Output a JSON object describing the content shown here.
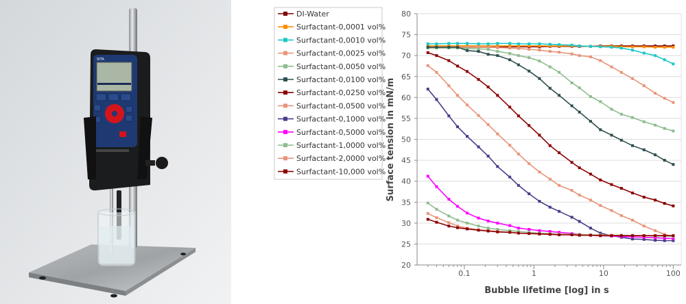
{
  "photo": {
    "device_logo": "SITA"
  },
  "chart_data": {
    "type": "line",
    "xlabel": "Bubble lifetime [log] in s",
    "ylabel": "Surface tension in mN/m",
    "xscale": "log",
    "xlim": [
      0.021,
      130
    ],
    "ylim": [
      20,
      80
    ],
    "yticks": [
      20,
      25,
      30,
      35,
      40,
      45,
      50,
      55,
      60,
      65,
      70,
      75,
      80
    ],
    "xticks": [
      0.1,
      1,
      10,
      100
    ],
    "xtick_labels": [
      "0.1",
      "1",
      "10",
      "100"
    ],
    "grid": "horizontal",
    "legend_placement": "left",
    "x": [
      0.03,
      0.04,
      0.06,
      0.08,
      0.11,
      0.16,
      0.22,
      0.3,
      0.45,
      0.6,
      0.85,
      1.2,
      1.7,
      2.3,
      3.5,
      4.5,
      6.5,
      9,
      13,
      18,
      26,
      38,
      55,
      75,
      100
    ],
    "series": [
      {
        "name": "DI-Water",
        "color": "#7f0000",
        "values": [
          72,
          72,
          72,
          72,
          72,
          72,
          72,
          72,
          72.1,
          72.1,
          72.1,
          72.1,
          72.2,
          72.2,
          72.2,
          72.2,
          72.2,
          72.3,
          72.3,
          72.3,
          72.3,
          72.3,
          72.3,
          72.3,
          72.3
        ]
      },
      {
        "name": "Surfactant-0,0001 vol%",
        "color": "#ff8c00",
        "values": [
          72.3,
          72.3,
          72.3,
          72.3,
          72.3,
          72.3,
          72.3,
          72.3,
          72.3,
          72.3,
          72.3,
          72.3,
          72.3,
          72.3,
          72.3,
          72.3,
          72.2,
          72.2,
          72.2,
          72.1,
          72.1,
          72.1,
          72,
          72,
          72
        ]
      },
      {
        "name": "Surfactant-0,0010 vol%",
        "color": "#1cc8c8",
        "values": [
          72.8,
          72.8,
          72.9,
          72.9,
          72.9,
          72.8,
          72.8,
          72.9,
          72.9,
          72.8,
          72.8,
          72.8,
          72.7,
          72.6,
          72.5,
          72.3,
          72.2,
          72.1,
          72,
          71.8,
          71.3,
          70.6,
          70,
          69,
          68
        ]
      },
      {
        "name": "Surfactant-0,0025 vol%",
        "color": "#e8957a",
        "values": [
          72,
          72,
          72,
          72,
          72,
          72,
          72,
          71.9,
          71.8,
          71.7,
          71.5,
          71.3,
          71,
          70.8,
          70.4,
          70,
          69.7,
          68.8,
          67.3,
          66,
          64.5,
          62.8,
          61,
          59.8,
          58.8
        ]
      },
      {
        "name": "Surfactant-0,0050 vol%",
        "color": "#8fbc8f",
        "values": [
          71.8,
          71.8,
          71.8,
          71.8,
          71.7,
          71.6,
          71.5,
          71,
          70.5,
          70,
          69.5,
          68.7,
          67.3,
          66,
          63.5,
          62.3,
          60.2,
          59,
          57.2,
          56,
          55.2,
          54.2,
          53.4,
          52.6,
          52
        ]
      },
      {
        "name": "Surfactant-0,0100 vol%",
        "color": "#2f4f4f",
        "values": [
          72,
          72,
          72,
          72,
          71.2,
          71,
          70.3,
          70,
          69,
          67.8,
          66.3,
          64.5,
          62.2,
          60.5,
          58,
          56.5,
          54.3,
          52.3,
          51,
          49.8,
          48.5,
          47.5,
          46.3,
          45,
          44
        ]
      },
      {
        "name": "Surfactant-0,0250 vol%",
        "color": "#8b0000",
        "values": [
          70.7,
          70,
          68.8,
          67.5,
          66.2,
          64.3,
          62.5,
          60.5,
          57.7,
          55.6,
          53.3,
          51,
          48.5,
          46.8,
          44.5,
          43.2,
          41.7,
          40.3,
          39.2,
          38.3,
          37.2,
          36.2,
          35.5,
          34.7,
          34.1
        ]
      },
      {
        "name": "Surfactant-0,0500 vol%",
        "color": "#e8957a",
        "values": [
          67.6,
          66,
          62.8,
          60.5,
          58.2,
          55.7,
          53.5,
          51.3,
          48.6,
          46.5,
          44.2,
          42.2,
          40.5,
          39,
          37.8,
          36.7,
          35.5,
          34.2,
          33,
          31.8,
          30.7,
          29.3,
          28.2,
          27.3,
          26.8
        ]
      },
      {
        "name": "Surfactant-0,1000 vol%",
        "color": "#483d8b",
        "values": [
          62,
          59.5,
          55.6,
          53,
          50.7,
          48.2,
          46,
          43.5,
          41,
          39,
          37,
          35.2,
          33.8,
          32.8,
          31.4,
          30.4,
          28.8,
          27.6,
          27,
          26.6,
          26.2,
          26.1,
          25.9,
          25.8,
          25.8
        ]
      },
      {
        "name": "Surfactant-0,5000 vol%",
        "color": "#ff00ff",
        "values": [
          41.2,
          38.7,
          35.7,
          34,
          32.4,
          31.2,
          30.5,
          30,
          29.4,
          28.8,
          28.5,
          28.2,
          28,
          27.8,
          27.5,
          27.3,
          27.1,
          27,
          26.9,
          26.8,
          26.7,
          26.6,
          26.5,
          26.4,
          26.3
        ]
      },
      {
        "name": "Surfactant-1,0000 vol%",
        "color": "#8fbc8f",
        "values": [
          34.8,
          33.3,
          31.7,
          30.7,
          30,
          29.3,
          28.8,
          28.5,
          28.2,
          28,
          27.8,
          27.6,
          27.5,
          27.4,
          27.3,
          27.3,
          27.2,
          27.2,
          27.1,
          27.1,
          27,
          27,
          26.9,
          26.9,
          26.8
        ]
      },
      {
        "name": "Surfactant-2,0000 vol%",
        "color": "#e8957a",
        "values": [
          32.3,
          31.3,
          30.1,
          29.3,
          28.8,
          28.4,
          28.2,
          28,
          27.8,
          27.6,
          27.5,
          27.4,
          27.4,
          27.3,
          27.2,
          27.2,
          27.1,
          27.1,
          27.1,
          27,
          27,
          27,
          27,
          27,
          27
        ]
      },
      {
        "name": "Surfactant-10,000 vol%",
        "color": "#8b0000",
        "values": [
          30.9,
          30.2,
          29.3,
          28.9,
          28.6,
          28.3,
          28.1,
          27.9,
          27.8,
          27.6,
          27.5,
          27.4,
          27.3,
          27.2,
          27.2,
          27.1,
          27.1,
          27,
          27,
          27,
          27,
          27,
          27,
          27,
          27
        ]
      }
    ]
  }
}
